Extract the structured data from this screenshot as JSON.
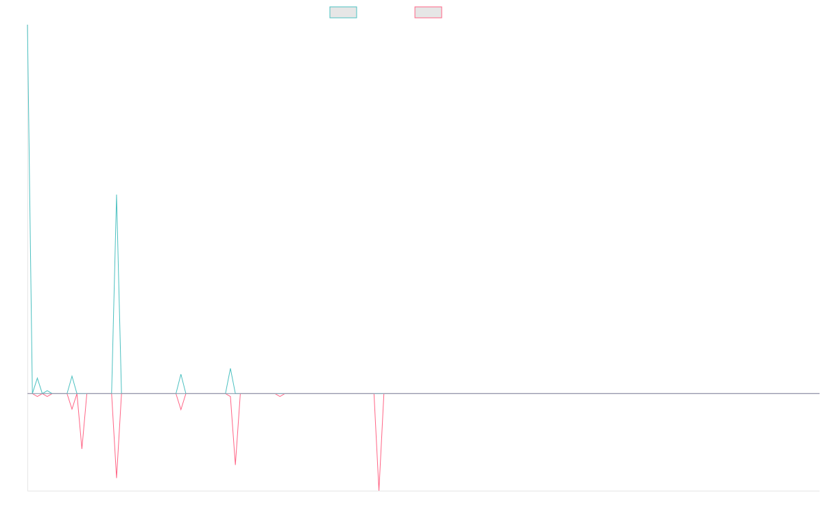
{
  "chart_data": {
    "type": "line",
    "title": "",
    "xlabel": "",
    "ylabel": "",
    "ylim": [
      -20,
      76
    ],
    "xlim": [
      0,
      160
    ],
    "grid": false,
    "legend": "top-center",
    "colors": {
      "series_1_stroke": "#4bc0c0",
      "series_2_stroke": "#ff6384",
      "legend_fill": "#e6e6e6",
      "zero_line": "#8c9db0",
      "axis_line": "#e6e6e6"
    },
    "series": [
      {
        "x": [
          0,
          1,
          2,
          3,
          4,
          5,
          6,
          7,
          8,
          9,
          10,
          11,
          12,
          13,
          14,
          15,
          16,
          17,
          18,
          19,
          20,
          21,
          22,
          23,
          24,
          25,
          26,
          27,
          28,
          29,
          30,
          31,
          32,
          33,
          34,
          35,
          36,
          37,
          38,
          39,
          40,
          41,
          42,
          43,
          44,
          45,
          46,
          47,
          48,
          49,
          50,
          51,
          52,
          53,
          54,
          55,
          56,
          57,
          58,
          59,
          60,
          61,
          62,
          63,
          64,
          65,
          66,
          67,
          68,
          69,
          70,
          71,
          72,
          73,
          74,
          75,
          76,
          77,
          78,
          79,
          80,
          81,
          82,
          83,
          84,
          85,
          86,
          87,
          88,
          89,
          90,
          91,
          92,
          93,
          94,
          95,
          96,
          97,
          98,
          99,
          100,
          101,
          102,
          103,
          104,
          105,
          106,
          107,
          108,
          109,
          110,
          111,
          112,
          113,
          114,
          115,
          116,
          117,
          118,
          119,
          120,
          121,
          122,
          123,
          124,
          125,
          126,
          127,
          128,
          129,
          130,
          131,
          132,
          133,
          134,
          135,
          136,
          137,
          138,
          139,
          140,
          141,
          142,
          143,
          144,
          145,
          146,
          147,
          148,
          149,
          150,
          151,
          152,
          153,
          154,
          155,
          156,
          157,
          158,
          159,
          160
        ],
        "values": [
          76,
          0,
          3.2,
          0,
          0.6,
          0,
          0,
          0,
          0,
          3.6,
          0,
          0,
          0,
          0,
          0,
          0,
          0,
          0,
          41,
          0,
          0,
          0,
          0,
          0,
          0,
          0,
          0,
          0,
          0,
          0,
          0,
          4,
          0,
          0,
          0,
          0,
          0,
          0,
          0,
          0,
          0,
          5.2,
          0,
          0,
          0,
          0,
          0,
          0,
          0,
          0,
          0,
          0,
          0,
          0,
          0,
          0,
          0,
          0,
          0,
          0,
          0,
          0,
          0,
          0,
          0,
          0,
          0,
          0,
          0,
          0,
          0,
          0,
          0,
          0,
          0,
          0,
          0,
          0,
          0,
          0,
          0,
          0,
          0,
          0,
          0,
          0,
          0,
          0,
          0,
          0,
          0,
          0,
          0,
          0,
          0,
          0,
          0,
          0,
          0,
          0,
          0,
          0,
          0,
          0,
          0,
          0,
          0,
          0,
          0,
          0,
          0,
          0,
          0,
          0,
          0,
          0,
          0,
          0,
          0,
          0,
          0,
          0,
          0,
          0,
          0,
          0,
          0,
          0,
          0,
          0,
          0,
          0,
          0,
          0,
          0,
          0,
          0,
          0,
          0,
          0,
          0,
          0,
          0,
          0,
          0,
          0,
          0,
          0,
          0,
          0,
          0,
          0,
          0,
          0,
          0,
          0,
          0,
          0,
          0,
          0,
          0
        ]
      },
      {
        "x": [
          0,
          1,
          2,
          3,
          4,
          5,
          6,
          7,
          8,
          9,
          10,
          11,
          12,
          13,
          14,
          15,
          16,
          17,
          18,
          19,
          20,
          21,
          22,
          23,
          24,
          25,
          26,
          27,
          28,
          29,
          30,
          31,
          32,
          33,
          34,
          35,
          36,
          37,
          38,
          39,
          40,
          41,
          42,
          43,
          44,
          45,
          46,
          47,
          48,
          49,
          50,
          51,
          52,
          53,
          54,
          55,
          56,
          57,
          58,
          59,
          60,
          61,
          62,
          63,
          64,
          65,
          66,
          67,
          68,
          69,
          70,
          71,
          72,
          73,
          74,
          75,
          76,
          77,
          78,
          79,
          80,
          81,
          82,
          83,
          84,
          85,
          86,
          87,
          88,
          89,
          90,
          91,
          92,
          93,
          94,
          95,
          96,
          97,
          98,
          99,
          100,
          101,
          102,
          103,
          104,
          105,
          106,
          107,
          108,
          109,
          110,
          111,
          112,
          113,
          114,
          115,
          116,
          117,
          118,
          119,
          120,
          121,
          122,
          123,
          124,
          125,
          126,
          127,
          128,
          129,
          130,
          131,
          132,
          133,
          134,
          135,
          136,
          137,
          138,
          139,
          140,
          141,
          142,
          143,
          144,
          145,
          146,
          147,
          148,
          149,
          150,
          151,
          152,
          153,
          154,
          155,
          156,
          157,
          158,
          159,
          160
        ],
        "values": [
          0,
          0,
          -0.6,
          0,
          -0.6,
          0,
          0,
          0,
          0,
          -3.2,
          0,
          -11.4,
          0,
          0,
          0,
          0,
          0,
          0,
          -17.4,
          0,
          0,
          0,
          0,
          0,
          0,
          0,
          0,
          0,
          0,
          0,
          0,
          -3.3,
          0,
          0,
          0,
          0,
          0,
          0,
          0,
          0,
          0,
          -0.6,
          -14.7,
          0,
          0,
          0,
          0,
          0,
          0,
          0,
          0,
          -0.6,
          0,
          0,
          0,
          0,
          0,
          0,
          0,
          0,
          0,
          0,
          0,
          0,
          0,
          0,
          0,
          0,
          0,
          0,
          0,
          -20,
          0,
          0,
          0,
          0,
          0,
          0,
          0,
          0,
          0,
          0,
          0,
          0,
          0,
          0,
          0,
          0,
          0,
          0,
          0,
          0,
          0,
          0,
          0,
          0,
          0,
          0,
          0,
          0,
          0,
          0,
          0,
          0,
          0,
          0,
          0,
          0,
          0,
          0,
          0,
          0,
          0,
          0,
          0,
          0,
          0,
          0,
          0,
          0,
          0,
          0,
          0,
          0,
          0,
          0,
          0,
          0,
          0,
          0,
          0,
          0,
          0,
          0,
          0,
          0,
          0,
          0,
          0,
          0,
          0,
          0,
          0,
          0,
          0,
          0,
          0,
          0,
          0,
          0,
          0,
          0,
          0,
          0,
          0,
          0,
          0,
          0,
          0,
          0,
          0
        ]
      }
    ]
  }
}
